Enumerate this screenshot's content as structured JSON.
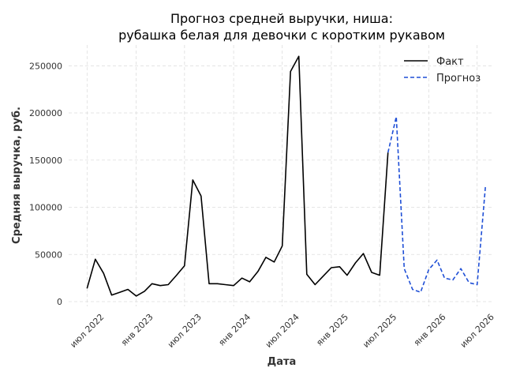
{
  "chart_data": {
    "type": "line",
    "title": "Прогноз средней выручки, ниша:",
    "subtitle": "рубашка белая для девочки с коротким рукавом",
    "xlabel": "Дата",
    "ylabel": "Средняя выручка, руб.",
    "ylim": [
      -5000,
      272000
    ],
    "xlim": [
      "2022-04-23",
      "2026-09-02"
    ],
    "grid": true,
    "legend_position": "top-right",
    "y_ticks": [
      0,
      50000,
      100000,
      150000,
      200000,
      250000
    ],
    "y_tick_labels": [
      "0",
      "50000",
      "100000",
      "150000",
      "200000",
      "250000"
    ],
    "x_ticks": [
      "2022-07-01",
      "2023-01-01",
      "2023-07-01",
      "2024-01-01",
      "2024-07-01",
      "2025-01-01",
      "2025-07-01",
      "2026-01-01",
      "2026-07-01"
    ],
    "x_tick_labels": [
      "июл 2022",
      "янв 2023",
      "июл 2023",
      "янв 2024",
      "июл 2024",
      "янв 2025",
      "июл 2025",
      "янв 2026",
      "июл 2026"
    ],
    "series": [
      {
        "name": "Факт",
        "color": "#000000",
        "style": "solid",
        "points": [
          [
            "2022-07-01",
            14000
          ],
          [
            "2022-08-01",
            45000
          ],
          [
            "2022-09-01",
            30000
          ],
          [
            "2022-10-01",
            7000
          ],
          [
            "2022-11-01",
            10000
          ],
          [
            "2022-12-01",
            13000
          ],
          [
            "2023-01-01",
            6000
          ],
          [
            "2023-02-01",
            11000
          ],
          [
            "2023-03-01",
            19000
          ],
          [
            "2023-04-01",
            17000
          ],
          [
            "2023-05-01",
            18000
          ],
          [
            "2023-06-01",
            28000
          ],
          [
            "2023-07-01",
            38000
          ],
          [
            "2023-08-01",
            129000
          ],
          [
            "2023-09-01",
            112000
          ],
          [
            "2023-10-01",
            19000
          ],
          [
            "2023-11-01",
            19000
          ],
          [
            "2023-12-01",
            18000
          ],
          [
            "2024-01-01",
            17000
          ],
          [
            "2024-02-01",
            25000
          ],
          [
            "2024-03-01",
            21000
          ],
          [
            "2024-04-01",
            32000
          ],
          [
            "2024-05-01",
            47000
          ],
          [
            "2024-06-01",
            42000
          ],
          [
            "2024-07-01",
            59000
          ],
          [
            "2024-08-01",
            244000
          ],
          [
            "2024-09-01",
            260000
          ],
          [
            "2024-10-01",
            29000
          ],
          [
            "2024-11-01",
            18000
          ],
          [
            "2024-12-01",
            27000
          ],
          [
            "2025-01-01",
            36000
          ],
          [
            "2025-02-01",
            37000
          ],
          [
            "2025-03-01",
            28000
          ],
          [
            "2025-04-01",
            41000
          ],
          [
            "2025-05-01",
            51000
          ],
          [
            "2025-06-01",
            31000
          ],
          [
            "2025-07-01",
            28000
          ],
          [
            "2025-08-01",
            158000
          ]
        ]
      },
      {
        "name": "Прогноз",
        "color": "#1f4fd6",
        "style": "dashed",
        "points": [
          [
            "2025-08-01",
            158000
          ],
          [
            "2025-09-01",
            196000
          ],
          [
            "2025-10-01",
            35000
          ],
          [
            "2025-11-01",
            13000
          ],
          [
            "2025-12-01",
            10000
          ],
          [
            "2026-01-01",
            34000
          ],
          [
            "2026-02-01",
            44000
          ],
          [
            "2026-03-01",
            25000
          ],
          [
            "2026-04-01",
            23000
          ],
          [
            "2026-05-01",
            35000
          ],
          [
            "2026-06-01",
            20000
          ],
          [
            "2026-07-01",
            18000
          ],
          [
            "2026-08-01",
            122000
          ]
        ]
      }
    ]
  }
}
